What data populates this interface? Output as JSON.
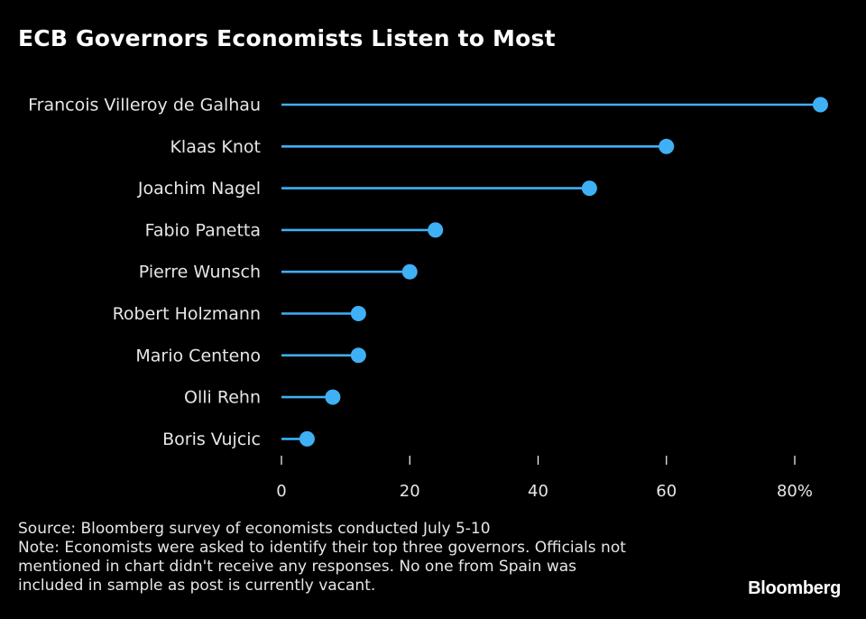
{
  "chart_data": {
    "type": "lollipop",
    "title": "ECB Governors Economists Listen to Most",
    "categories": [
      "Francois Villeroy de Galhau",
      "Klaas Knot",
      "Joachim Nagel",
      "Fabio Panetta",
      "Pierre Wunsch",
      "Robert Holzmann",
      "Mario Centeno",
      "Olli Rehn",
      "Boris Vujcic"
    ],
    "values": [
      84,
      60,
      48,
      24,
      20,
      12,
      12,
      8,
      4
    ],
    "xlim": [
      0,
      80
    ],
    "xticks": [
      0,
      20,
      40,
      60,
      80
    ],
    "xtick_labels": [
      "0",
      "20",
      "40",
      "60",
      "80%"
    ],
    "xlabel": "",
    "ylabel": "",
    "grid": false,
    "color": "#3fb0f5"
  },
  "footnote": {
    "lines": [
      "Source: Bloomberg survey of economists conducted July 5-10",
      "Note: Economists were asked to identify their top three governors. Officials not",
      "mentioned in chart didn't receive any responses. No one from Spain was",
      "included in sample as post is currently vacant."
    ]
  },
  "brand": "Bloomberg"
}
